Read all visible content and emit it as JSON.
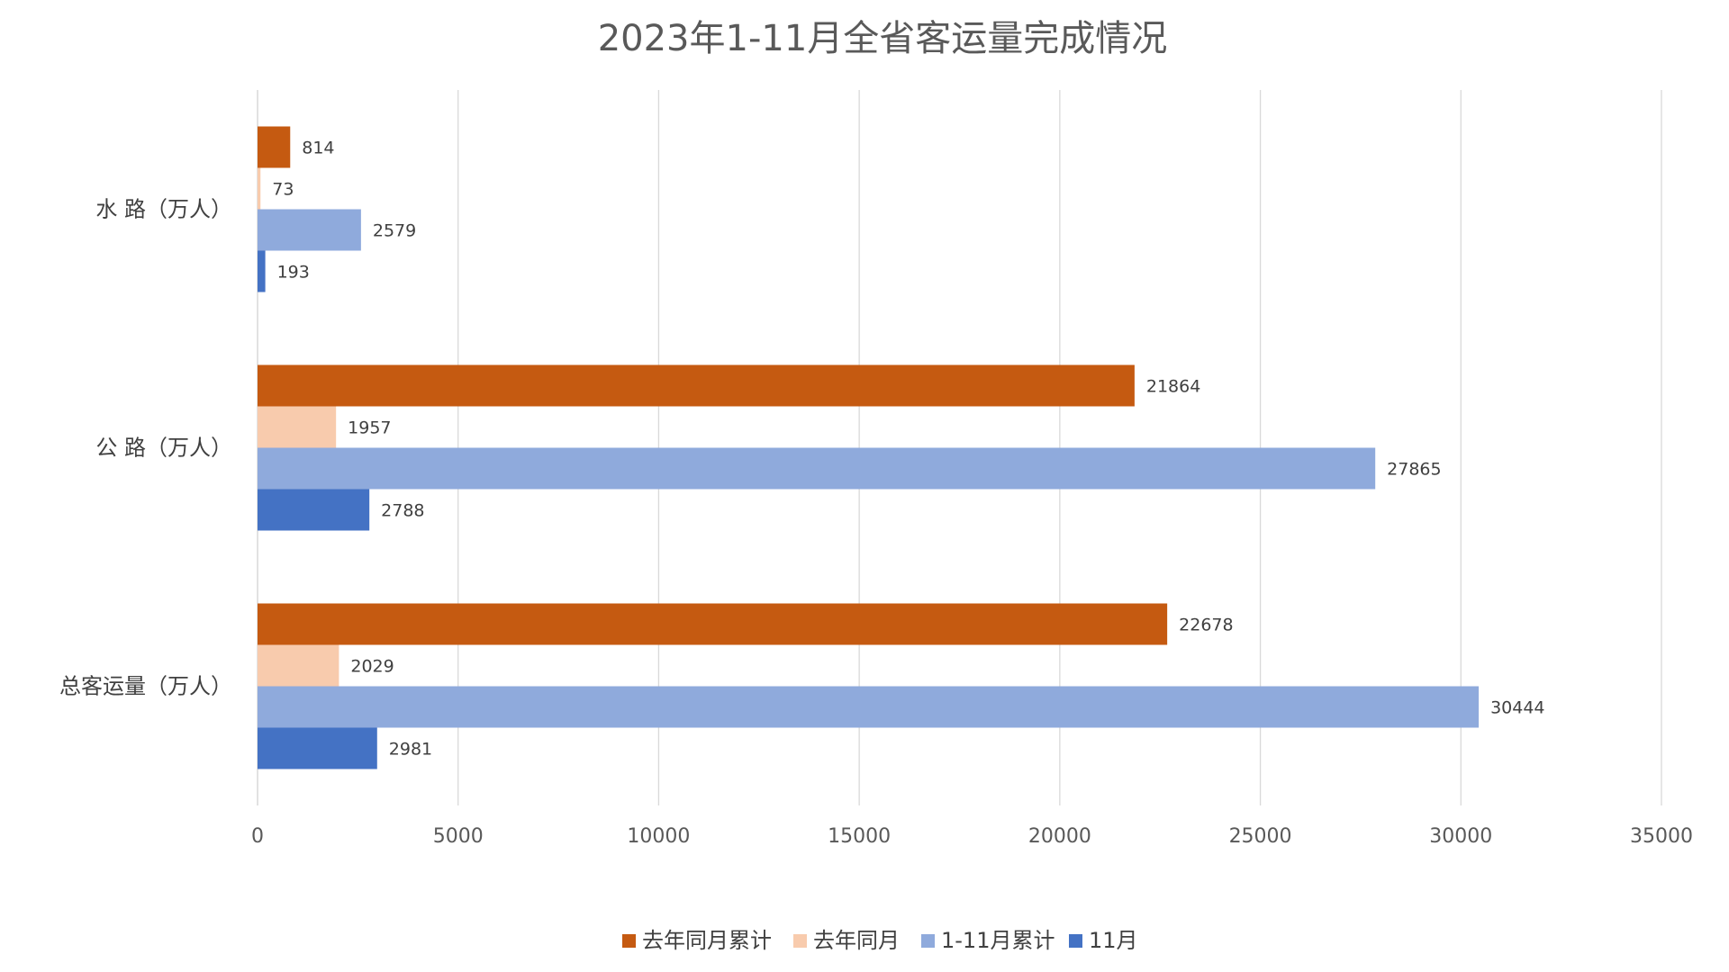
{
  "chart_data": {
    "type": "bar",
    "orientation": "horizontal",
    "title": "2023年1-11月全省客运量完成情况",
    "categories": [
      "水  路（万人）",
      "公  路（万人）",
      "总客运量（万人）"
    ],
    "series": [
      {
        "name": "去年同月累计",
        "color": "#C55A11",
        "values": [
          814,
          21864,
          22678
        ]
      },
      {
        "name": "去年同月",
        "color": "#F8CBAD",
        "values": [
          73,
          1957,
          2029
        ]
      },
      {
        "name": "1-11月累计",
        "color": "#8FAADC",
        "values": [
          2579,
          27865,
          30444
        ]
      },
      {
        "name": "11月",
        "color": "#4472C4",
        "values": [
          193,
          2788,
          2981
        ]
      }
    ],
    "xlim": [
      0,
      35000
    ],
    "xticks": [
      0,
      5000,
      10000,
      15000,
      20000,
      25000,
      30000,
      35000
    ],
    "grid": true,
    "legend_position": "bottom",
    "data_labels": true
  }
}
